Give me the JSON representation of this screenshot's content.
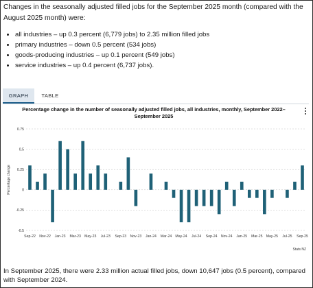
{
  "intro": "Changes in the seasonally adjusted filled jobs for the September 2025 month (compared with the August 2025 month) were:",
  "bullets": [
    "all industries – up 0.3 percent (6,779 jobs) to 2.35 million filled jobs",
    "primary industries – down 0.5 percent (534 jobs)",
    "goods-producing industries – up 0.1 percent (549 jobs)",
    "service industries – up 0.4 percent (6,737 jobs)."
  ],
  "tabs": {
    "graph": "GRAPH",
    "table": "TABLE",
    "active": "graph"
  },
  "footer": "In September 2025, there were 2.33 million actual filled jobs, down 10,647 jobs (0.5 percent), compared with September 2024.",
  "colors": {
    "bar": "#1f6177",
    "gridline": "#bfbfbf",
    "tab_active_bg": "#dfe7ef",
    "tab_underline": "#1f5f8b"
  },
  "chart_data": {
    "type": "bar",
    "title": "Percentage change in the number of seasonally adjusted filled jobs, all industries, monthly, September 2022–September 2025",
    "xlabel": "",
    "ylabel": "Percentage change",
    "ylim": [
      -0.5,
      0.75
    ],
    "yticks": [
      "-0.5",
      "-0.25",
      "0",
      "0.25",
      "0.5",
      "0.75"
    ],
    "ytick_values": [
      -0.5,
      -0.25,
      0,
      0.25,
      0.5,
      0.75
    ],
    "grid": true,
    "source": "Stats NZ",
    "xtick_labels": [
      "Sep-22",
      "Nov-22",
      "Jan-23",
      "Mar-23",
      "May-23",
      "Jul-23",
      "Sep-23",
      "Nov-23",
      "Jan-24",
      "Mar-24",
      "May-24",
      "Jul-24",
      "Sep-24",
      "Nov-24",
      "Jan-25",
      "Mar-25",
      "May-25",
      "Jul-25",
      "Sep-25"
    ],
    "categories": [
      "Sep-22",
      "Oct-22",
      "Nov-22",
      "Dec-22",
      "Jan-23",
      "Feb-23",
      "Mar-23",
      "Apr-23",
      "May-23",
      "Jun-23",
      "Jul-23",
      "Aug-23",
      "Sep-23",
      "Oct-23",
      "Nov-23",
      "Dec-23",
      "Jan-24",
      "Feb-24",
      "Mar-24",
      "Apr-24",
      "May-24",
      "Jun-24",
      "Jul-24",
      "Aug-24",
      "Sep-24",
      "Oct-24",
      "Nov-24",
      "Dec-24",
      "Jan-25",
      "Feb-25",
      "Mar-25",
      "Apr-25",
      "May-25",
      "Jun-25",
      "Jul-25",
      "Aug-25",
      "Sep-25"
    ],
    "values": [
      0.3,
      0.1,
      0.2,
      -0.4,
      0.6,
      0.5,
      0.2,
      0.6,
      0.2,
      0.3,
      0.2,
      0.0,
      0.1,
      0.4,
      -0.2,
      0.0,
      0.2,
      0.0,
      0.1,
      -0.1,
      -0.4,
      -0.4,
      -0.2,
      -0.2,
      -0.2,
      -0.3,
      0.1,
      -0.2,
      0.1,
      -0.1,
      -0.1,
      -0.3,
      -0.1,
      0.0,
      -0.1,
      0.1,
      0.3
    ]
  }
}
